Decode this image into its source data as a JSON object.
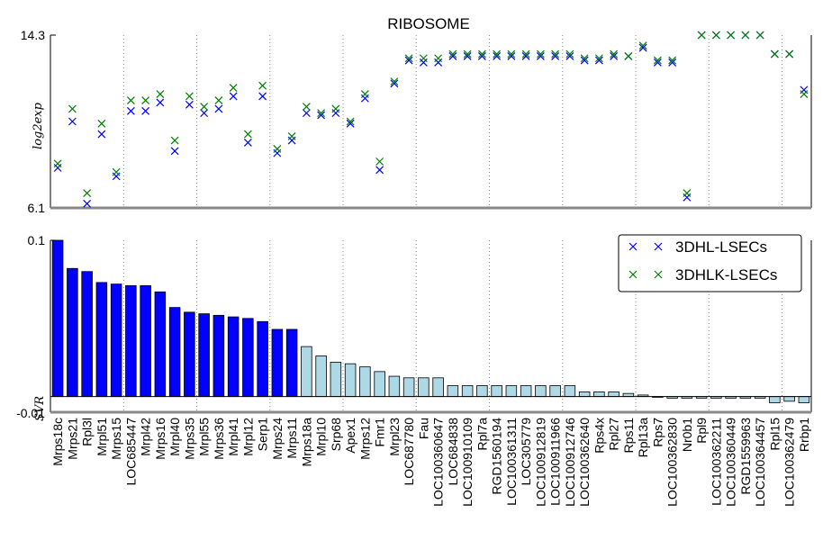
{
  "chart_data": [
    {
      "type": "scatter",
      "title": "RIBOSOME",
      "xlabel": "",
      "ylabel": "log2exp",
      "ylim": [
        6.1,
        14.3
      ],
      "ytick_labels": [
        "6.1",
        "14.3"
      ],
      "grid": "vertical dotted every 5 genes",
      "legend_position": "lower-panel upper-right",
      "series": [
        {
          "name": "3DHL-LSECs",
          "color": "#0000ff",
          "marker": "x",
          "values": [
            8.0,
            10.2,
            6.3,
            9.6,
            7.6,
            10.7,
            10.7,
            11.1,
            8.8,
            11.0,
            10.6,
            10.8,
            11.4,
            9.2,
            11.4,
            8.7,
            9.3,
            10.6,
            10.5,
            10.6,
            10.1,
            11.3,
            7.9,
            12.0,
            13.1,
            13.0,
            13.0,
            13.3,
            13.3,
            13.3,
            13.3,
            13.3,
            13.3,
            13.3,
            13.3,
            13.3,
            13.1,
            13.1,
            13.3,
            13.3,
            13.7,
            13.0,
            13.0,
            6.6,
            14.3,
            14.3,
            14.3,
            14.3,
            14.3,
            13.4,
            13.4,
            11.7
          ]
        },
        {
          "name": "3DHLK-LSECs",
          "color": "#008000",
          "marker": "x",
          "values": [
            8.2,
            10.8,
            6.8,
            10.1,
            7.8,
            11.2,
            11.2,
            11.5,
            9.3,
            11.4,
            10.9,
            11.2,
            11.8,
            9.6,
            11.9,
            8.9,
            9.5,
            10.9,
            10.6,
            10.8,
            10.2,
            11.5,
            8.3,
            12.1,
            13.2,
            13.2,
            13.2,
            13.4,
            13.4,
            13.4,
            13.4,
            13.4,
            13.4,
            13.4,
            13.4,
            13.4,
            13.2,
            13.2,
            13.4,
            13.3,
            13.8,
            13.1,
            13.1,
            6.8,
            14.3,
            14.3,
            14.3,
            14.3,
            14.3,
            13.4,
            13.4,
            11.5
          ]
        }
      ]
    },
    {
      "type": "bar",
      "title": "",
      "xlabel": "",
      "ylabel": "SVR",
      "ylim": [
        -0.01,
        0.1
      ],
      "ytick_labels": [
        "-0.01",
        "0.1"
      ],
      "grid": "vertical dotted every 5 genes",
      "categories": [
        "Mrps18c",
        "Mrps21",
        "Rpl3l",
        "Mrpl51",
        "Mrps15",
        "LOC685447",
        "Mrpl42",
        "Mrps16",
        "Mrpl40",
        "Mrps35",
        "Mrpl55",
        "Mrps36",
        "Mrpl41",
        "Mrpl12",
        "Serp1",
        "Mrps24",
        "Mrps11",
        "Mrps18a",
        "Mrpl10",
        "Srp68",
        "Apex1",
        "Mrps12",
        "Fmr1",
        "Mrpl23",
        "LOC687780",
        "Fau",
        "LOC100360647",
        "LOC684838",
        "LOC100910109",
        "Rpl7a",
        "RGD1560194",
        "LOC100361311",
        "LOC305779",
        "LOC100912819",
        "LOC100911966",
        "LOC100912746",
        "LOC100362640",
        "Rps4x",
        "Rpl27",
        "Rps11",
        "Rpl13a",
        "Rps7",
        "LOC100362830",
        "Nr0b1",
        "Rpl9",
        "LOC100362211",
        "LOC100360449",
        "RGD1559963",
        "LOC100364457",
        "Rpl15",
        "LOC100362479",
        "Rrbp1"
      ],
      "values": [
        0.1,
        0.082,
        0.08,
        0.073,
        0.072,
        0.071,
        0.071,
        0.067,
        0.057,
        0.054,
        0.053,
        0.052,
        0.051,
        0.05,
        0.048,
        0.043,
        0.043,
        0.032,
        0.026,
        0.022,
        0.021,
        0.019,
        0.016,
        0.013,
        0.012,
        0.012,
        0.012,
        0.007,
        0.007,
        0.007,
        0.007,
        0.007,
        0.007,
        0.007,
        0.007,
        0.007,
        0.003,
        0.003,
        0.003,
        0.002,
        0.001,
        0.0,
        -0.001,
        -0.001,
        -0.001,
        -0.001,
        -0.001,
        -0.001,
        -0.001,
        -0.004,
        -0.003,
        -0.004
      ],
      "bar_colors": [
        "#0000ff",
        "#add8e6"
      ],
      "highlighted_count": 17
    }
  ],
  "legend": {
    "entries": [
      "3DHL-LSECs",
      "3DHLK-LSECs"
    ]
  }
}
